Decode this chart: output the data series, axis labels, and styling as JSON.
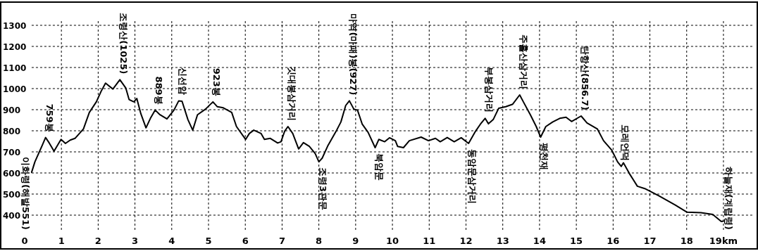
{
  "chart_data": {
    "type": "line",
    "marker": "none",
    "line_style": "solid",
    "grid": true,
    "xlim": [
      -0.65,
      19.92
    ],
    "ylim": [
      240,
      1410
    ],
    "xticks": [
      0,
      1,
      2,
      3,
      4,
      5,
      6,
      7,
      8,
      9,
      10,
      11,
      12,
      13,
      14,
      15,
      16,
      17,
      18,
      {
        "value": 19,
        "label": "19km"
      }
    ],
    "yticks": [
      400,
      500,
      600,
      700,
      800,
      900,
      1000,
      1100,
      1200,
      1300
    ],
    "series": [
      {
        "color": "#000000",
        "x": [
          0.19,
          0.28,
          0.38,
          0.48,
          0.57,
          0.67,
          0.8,
          0.99,
          1.11,
          1.24,
          1.37,
          1.6,
          1.76,
          1.95,
          2.08,
          2.2,
          2.4,
          2.59,
          2.75,
          2.84,
          2.97,
          3.05,
          3.16,
          3.3,
          3.42,
          3.55,
          3.68,
          3.87,
          4.06,
          4.19,
          4.28,
          4.44,
          4.57,
          4.7,
          4.92,
          5.12,
          5.24,
          5.4,
          5.63,
          5.76,
          6.01,
          6.11,
          6.23,
          6.43,
          6.52,
          6.68,
          6.88,
          6.97,
          7.07,
          7.16,
          7.29,
          7.45,
          7.58,
          7.74,
          7.9,
          8.0,
          8.09,
          8.25,
          8.47,
          8.6,
          8.73,
          8.83,
          8.95,
          9.05,
          9.18,
          9.34,
          9.53,
          9.63,
          9.79,
          9.92,
          10.08,
          10.14,
          10.3,
          10.46,
          10.78,
          10.98,
          11.17,
          11.3,
          11.49,
          11.68,
          11.87,
          12.07,
          12.26,
          12.39,
          12.52,
          12.61,
          12.74,
          12.89,
          13.08,
          13.27,
          13.46,
          13.56,
          13.75,
          13.91,
          14.03,
          14.17,
          14.36,
          14.55,
          14.72,
          14.87,
          15.13,
          15.29,
          15.57,
          15.74,
          15.96,
          16.12,
          16.22,
          16.28,
          16.44,
          16.66,
          16.86,
          17.24,
          17.69,
          18.01,
          18.39,
          18.71,
          18.94,
          19.0
        ],
        "values": [
          603,
          653,
          692,
          731,
          768,
          742,
          703,
          759,
          740,
          756,
          764,
          809,
          887,
          937,
          987,
          1026,
          998,
          1042,
          1003,
          948,
          937,
          953,
          881,
          814,
          859,
          898,
          876,
          856,
          898,
          942,
          940,
          853,
          803,
          876,
          903,
          937,
          914,
          909,
          887,
          820,
          759,
          787,
          803,
          787,
          759,
          764,
          742,
          748,
          798,
          820,
          787,
          714,
          744,
          726,
          692,
          653,
          670,
          731,
          798,
          842,
          920,
          942,
          903,
          898,
          831,
          792,
          720,
          759,
          748,
          767,
          753,
          726,
          720,
          753,
          770,
          753,
          764,
          748,
          768,
          748,
          767,
          740,
          798,
          831,
          859,
          833,
          853,
          907,
          914,
          926,
          970,
          937,
          876,
          820,
          770,
          820,
          842,
          859,
          864,
          844,
          870,
          837,
          809,
          753,
          709,
          653,
          631,
          648,
          598,
          537,
          526,
          492,
          448,
          414,
          412,
          403,
          370,
          372
        ]
      }
    ],
    "annotations": [
      {
        "text": "이화령(해발551)",
        "x": 0.19,
        "y": 603
      },
      {
        "text": "759봉",
        "x": 0.57,
        "y": 768
      },
      {
        "text": "조령산(1025)",
        "x": 2.59,
        "y": 1042
      },
      {
        "text": "889봉",
        "x": 3.55,
        "y": 898
      },
      {
        "text": "신선암",
        "x": 4.19,
        "y": 942
      },
      {
        "text": "923봉",
        "x": 5.12,
        "y": 937
      },
      {
        "text": "깃대봉삼거리",
        "x": 7.16,
        "y": 820
      },
      {
        "text": "조령3관문",
        "x": 8.0,
        "y": 653
      },
      {
        "text": "마역(마패)봉(927)",
        "x": 8.83,
        "y": 942
      },
      {
        "text": "북암문",
        "x": 9.53,
        "y": 720
      },
      {
        "text": "동암문삼거리",
        "x": 12.07,
        "y": 740
      },
      {
        "text": "부봉삼거리",
        "x": 12.52,
        "y": 859
      },
      {
        "text": "주흘산삼거리",
        "x": 13.46,
        "y": 970
      },
      {
        "text": "평천재",
        "x": 14.03,
        "y": 770
      },
      {
        "text": "탄항산(856.7)",
        "x": 15.13,
        "y": 870
      },
      {
        "text": "모레언덕",
        "x": 16.22,
        "y": 631
      },
      {
        "text": "하늘재(계립령)",
        "x": 19.0,
        "y": 372
      }
    ]
  }
}
